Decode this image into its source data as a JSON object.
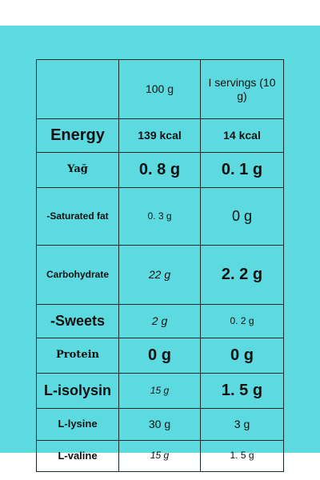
{
  "header": {
    "col1": "",
    "col2": "100 g",
    "col3": "I servings (10 g)"
  },
  "rows": [
    {
      "name": "Energy",
      "per100": "139 kcal",
      "serving": "14 kcal"
    },
    {
      "name": "Yağ",
      "per100": "0. 8 g",
      "serving": "0. 1 g"
    },
    {
      "name": "-Saturated fat",
      "per100": "0. 3 g",
      "serving": "0 g"
    },
    {
      "name": "Carbohydrate",
      "per100": "22 g",
      "serving": "2. 2 g"
    },
    {
      "name": "-Sweets",
      "per100": "2 g",
      "serving": "0. 2 g"
    },
    {
      "name": "Protein",
      "per100": "0 g",
      "serving": "0 g"
    },
    {
      "name": "L-isolysin",
      "per100": "15 g",
      "serving": "1. 5 g"
    },
    {
      "name": "L-lysine",
      "per100": "30 g",
      "serving": "3 g"
    },
    {
      "name": "L-valine",
      "per100": "15 g",
      "serving": "1. 5 g"
    }
  ],
  "colors": {
    "background": "#5ddae0",
    "border": "#1a2a2c",
    "text": "#111111"
  }
}
